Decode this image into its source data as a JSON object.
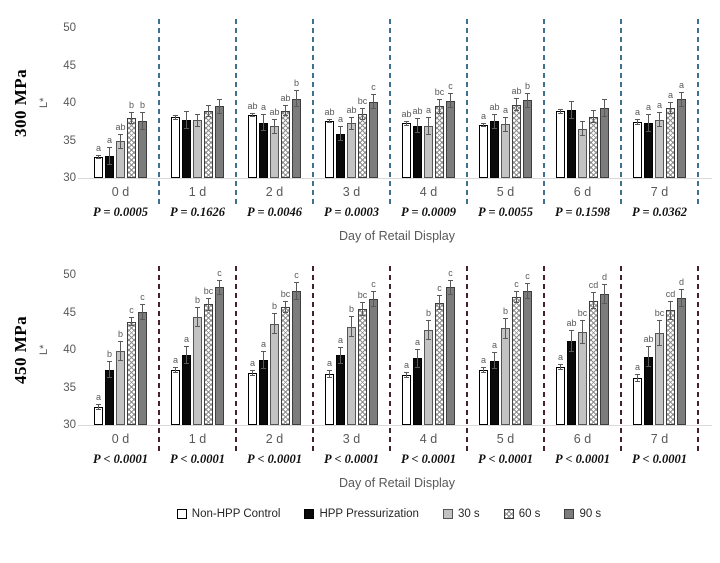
{
  "legend": {
    "items": [
      {
        "key": "control",
        "label": "Non-HPP Control"
      },
      {
        "key": "hpp",
        "label": "HPP Pressurization"
      },
      {
        "key": "s30",
        "label": "30 s"
      },
      {
        "key": "s60",
        "label": "60 s"
      },
      {
        "key": "s90",
        "label": "90 s"
      }
    ]
  },
  "chart_data": [
    {
      "type": "bar",
      "title": "300 MPa",
      "ylabel": "L*",
      "xlabel": "Day of Retail Display",
      "ylim": [
        30,
        50
      ],
      "yticks": [
        30,
        35,
        40,
        45,
        50
      ],
      "grid": false,
      "legend_position": "bottom",
      "separator_color": "#3e708f",
      "categories": [
        "0 d",
        "1 d",
        "2 d",
        "3 d",
        "4 d",
        "5 d",
        "6 d",
        "7 d"
      ],
      "p_values": [
        "P = 0.0005",
        "P = 0.1626",
        "P = 0.0046",
        "P = 0.0003",
        "P = 0.0009",
        "P = 0.0055",
        "P = 0.1598",
        "P = 0.0362"
      ],
      "series": [
        {
          "name": "Non-HPP Control",
          "key": "control",
          "values": [
            32.8,
            38.1,
            38.4,
            37.6,
            37.3,
            37.1,
            38.9,
            37.5
          ],
          "errors": [
            0.3,
            0.3,
            0.3,
            0.3,
            0.3,
            0.3,
            0.3,
            0.4
          ],
          "letters": [
            "a",
            "",
            "ab",
            "ab",
            "ab",
            "a",
            "",
            "a"
          ]
        },
        {
          "name": "HPP Pressurization",
          "key": "hpp",
          "values": [
            33.0,
            37.8,
            37.4,
            35.9,
            37.0,
            37.6,
            39.1,
            37.4
          ],
          "errors": [
            1.2,
            1.2,
            1.1,
            1.0,
            1.0,
            1.0,
            1.2,
            1.2
          ],
          "letters": [
            "a",
            "",
            "a",
            "a",
            "ab",
            "ab",
            "",
            "a"
          ]
        },
        {
          "name": "30 s",
          "key": "s30",
          "values": [
            34.9,
            37.7,
            36.9,
            37.3,
            36.9,
            37.2,
            36.6,
            37.8
          ],
          "errors": [
            1.0,
            0.9,
            1.0,
            0.9,
            1.2,
            1.0,
            1.0,
            1.0
          ],
          "letters": [
            "ab",
            "",
            "ab",
            "ab",
            "a",
            "a",
            "",
            "a"
          ]
        },
        {
          "name": "60 s",
          "key": "s60",
          "values": [
            38.0,
            39.0,
            39.0,
            38.6,
            39.6,
            39.8,
            38.2,
            39.3
          ],
          "errors": [
            0.8,
            0.8,
            0.7,
            0.8,
            1.0,
            0.9,
            0.9,
            0.8
          ],
          "letters": [
            "b",
            "",
            "ab",
            "bc",
            "bc",
            "ab",
            "",
            "a"
          ]
        },
        {
          "name": "90 s",
          "key": "s90",
          "values": [
            37.6,
            39.6,
            40.6,
            40.2,
            40.3,
            40.4,
            39.4,
            40.5
          ],
          "errors": [
            1.2,
            1.0,
            1.1,
            1.0,
            1.0,
            1.0,
            1.2,
            1.0
          ],
          "letters": [
            "b",
            "",
            "b",
            "c",
            "c",
            "b",
            "",
            "a"
          ]
        }
      ]
    },
    {
      "type": "bar",
      "title": "450 MPa",
      "ylabel": "L*",
      "xlabel": "Day of Retail Display",
      "ylim": [
        30,
        50
      ],
      "yticks": [
        30,
        35,
        40,
        45,
        50
      ],
      "grid": false,
      "legend_position": "bottom",
      "separator_color": "#471f33",
      "categories": [
        "0 d",
        "1 d",
        "2 d",
        "3 d",
        "4 d",
        "5 d",
        "6 d",
        "7 d"
      ],
      "p_values": [
        "P < 0.0001",
        "P < 0.0001",
        "P < 0.0001",
        "P < 0.0001",
        "P < 0.0001",
        "P < 0.0001",
        "P < 0.0001",
        "P < 0.0001"
      ],
      "series": [
        {
          "name": "Non-HPP Control",
          "key": "control",
          "values": [
            32.4,
            37.4,
            36.9,
            36.8,
            36.7,
            37.4,
            37.7,
            36.3
          ],
          "errors": [
            0.4,
            0.4,
            0.4,
            0.5,
            0.4,
            0.4,
            0.4,
            0.5
          ],
          "letters": [
            "a",
            "a",
            "a",
            "a",
            "a",
            "a",
            "a",
            "a"
          ]
        },
        {
          "name": "HPP Pressurization",
          "key": "hpp",
          "values": [
            37.4,
            39.3,
            38.7,
            39.3,
            38.9,
            38.6,
            41.2,
            39.1
          ],
          "errors": [
            1.1,
            1.2,
            1.2,
            1.1,
            1.3,
            1.1,
            1.5,
            1.4
          ],
          "letters": [
            "b",
            "a",
            "a",
            "a",
            "a",
            "a",
            "ab",
            "ab"
          ]
        },
        {
          "name": "30 s",
          "key": "s30",
          "values": [
            39.9,
            44.4,
            43.5,
            43.1,
            42.7,
            42.9,
            42.4,
            42.3
          ],
          "errors": [
            1.3,
            1.3,
            1.4,
            1.4,
            1.3,
            1.4,
            1.6,
            1.7
          ],
          "letters": [
            "b",
            "b",
            "b",
            "b",
            "b",
            "b",
            "bc",
            "bc"
          ]
        },
        {
          "name": "60 s",
          "key": "s60",
          "values": [
            43.8,
            46.1,
            45.7,
            45.5,
            46.3,
            47.1,
            46.6,
            45.3
          ],
          "errors": [
            0.6,
            0.9,
            0.8,
            0.9,
            1.0,
            0.8,
            1.1,
            1.3
          ],
          "letters": [
            "c",
            "bc",
            "bc",
            "bc",
            "c",
            "c",
            "cd",
            "cd"
          ]
        },
        {
          "name": "90 s",
          "key": "s90",
          "values": [
            45.1,
            48.4,
            47.9,
            46.8,
            48.4,
            47.9,
            47.5,
            47.0
          ],
          "errors": [
            1.1,
            1.0,
            1.2,
            1.1,
            1.0,
            1.1,
            1.3,
            1.2
          ],
          "letters": [
            "c",
            "c",
            "c",
            "c",
            "c",
            "c",
            "d",
            "d"
          ]
        }
      ]
    }
  ]
}
